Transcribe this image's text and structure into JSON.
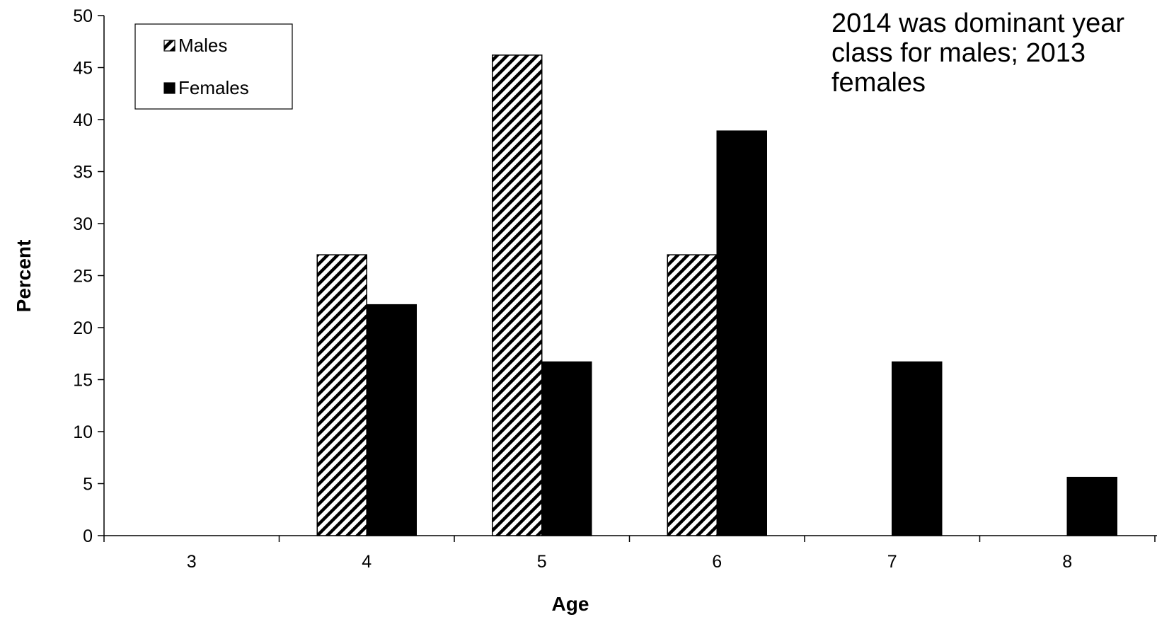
{
  "chart_data": {
    "type": "bar",
    "title": "",
    "xlabel": "Age",
    "ylabel": "Percent",
    "categories": [
      "3",
      "4",
      "5",
      "6",
      "7",
      "8"
    ],
    "ylim": [
      0,
      50
    ],
    "yticks": [
      "0",
      "5",
      "10",
      "15",
      "20",
      "25",
      "30",
      "35",
      "40",
      "45",
      "50"
    ],
    "grid": false,
    "legend_position": "top-left",
    "series": [
      {
        "name": "Males",
        "values": [
          0,
          27,
          46.2,
          27,
          0,
          0
        ],
        "fill": "hatched",
        "color": "#000000"
      },
      {
        "name": "Females",
        "values": [
          0,
          22.2,
          16.7,
          38.9,
          16.7,
          5.6
        ],
        "fill": "solid",
        "color": "#000000"
      }
    ],
    "annotation": "2014 was dominant year\nclass for males;  2013\nfemales"
  }
}
